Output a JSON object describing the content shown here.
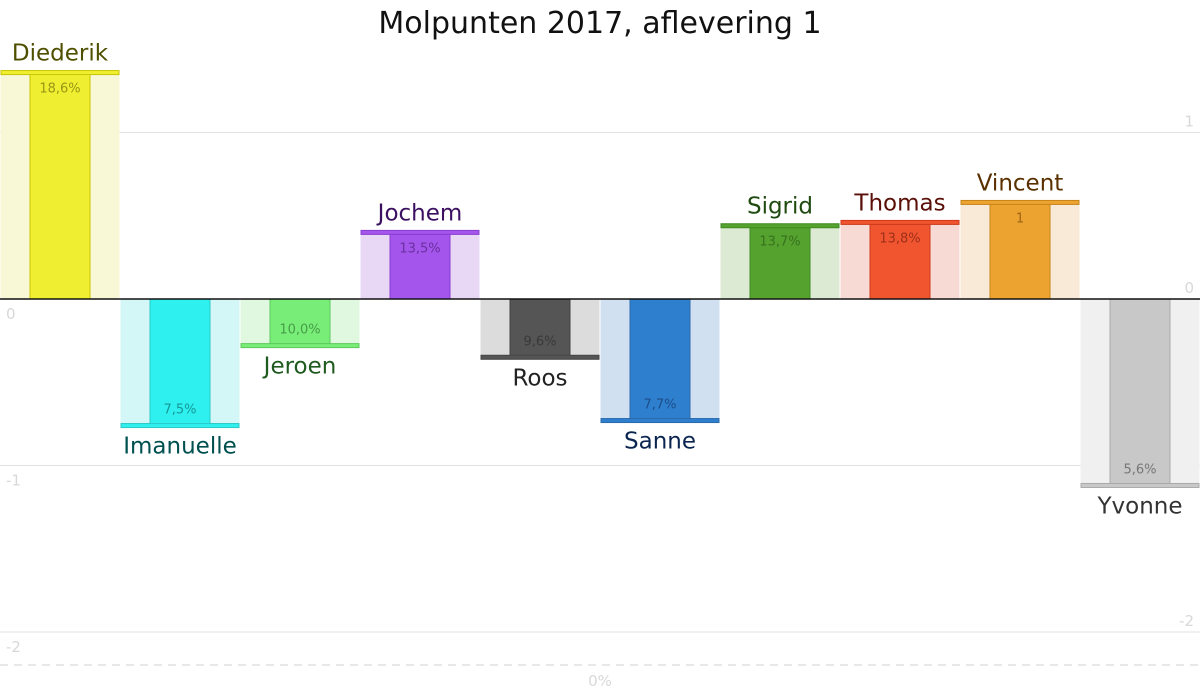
{
  "chart_data": {
    "type": "bar",
    "title": "Molpunten 2017, aflevering 1",
    "ylim": [
      -2.2,
      1.8
    ],
    "yticks": [
      1,
      0,
      -1,
      -2
    ],
    "grid": true,
    "baseline_label": "0%",
    "series": [
      {
        "name": "Diederik",
        "value": 1.36,
        "label": "18,6%",
        "colors": {
          "light": "#f8f8d6",
          "main": "#f0ee30",
          "edge": "#c8c600",
          "text": "#4f4f00"
        }
      },
      {
        "name": "Imanuelle",
        "value": -0.76,
        "label": "7,5%",
        "colors": {
          "light": "#d2f7f6",
          "main": "#2ef0ee",
          "edge": "#2cc8c6",
          "text": "#005050"
        }
      },
      {
        "name": "Jeroen",
        "value": -0.28,
        "label": "10,0%",
        "colors": {
          "light": "#e0f8e0",
          "main": "#78ee78",
          "edge": "#5cc85c",
          "text": "#1f5a1f"
        }
      },
      {
        "name": "Jochem",
        "value": 0.4,
        "label": "13,5%",
        "colors": {
          "light": "#e8d8f6",
          "main": "#a455ec",
          "edge": "#8a3cd0",
          "text": "#3b1060"
        }
      },
      {
        "name": "Roos",
        "value": -0.35,
        "label": "9,6%",
        "colors": {
          "light": "#dcdcdc",
          "main": "#555555",
          "edge": "#444444",
          "text": "#222222"
        }
      },
      {
        "name": "Sanne",
        "value": -0.73,
        "label": "7,7%",
        "colors": {
          "light": "#d0e0f0",
          "main": "#2f7fcf",
          "edge": "#2a6aaa",
          "text": "#0b2550"
        }
      },
      {
        "name": "Sigrid",
        "value": 0.44,
        "label": "13,7%",
        "colors": {
          "light": "#dcead4",
          "main": "#55a22f",
          "edge": "#3f8a20",
          "text": "#1f4a10"
        }
      },
      {
        "name": "Thomas",
        "value": 0.46,
        "label": "13,8%",
        "colors": {
          "light": "#f8dad4",
          "main": "#f05530",
          "edge": "#cc3a1a",
          "text": "#5a1008"
        }
      },
      {
        "name": "Vincent",
        "value": 0.58,
        "label": "1",
        "colors": {
          "light": "#f8ead6",
          "main": "#eda330",
          "edge": "#c88418",
          "text": "#5a3000"
        }
      },
      {
        "name": "Yvonne",
        "value": -1.12,
        "label": "5,6%",
        "colors": {
          "light": "#f0f0f0",
          "main": "#c8c8c8",
          "edge": "#aaaaaa",
          "text": "#333333"
        }
      }
    ]
  }
}
